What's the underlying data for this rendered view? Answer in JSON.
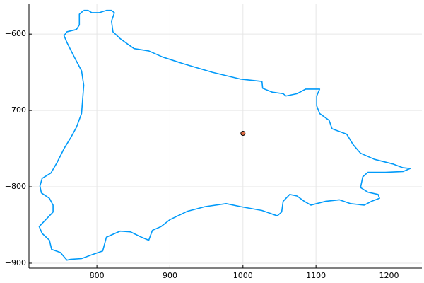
{
  "chart_data": {
    "type": "line",
    "xlim": [
      707,
      1245
    ],
    "ylim": [
      -906.5,
      -560
    ],
    "xticks": [
      800,
      900,
      1000,
      1100,
      1200
    ],
    "yticks": [
      {
        "value": -900,
        "label": "−900"
      },
      {
        "value": -800,
        "label": "−800"
      },
      {
        "value": -700,
        "label": "−700"
      },
      {
        "value": -600,
        "label": "−600"
      }
    ],
    "grid": true,
    "series": [
      {
        "type": "line",
        "color": "#009af9",
        "x": [
          782,
          788,
          793,
          803,
          813,
          820,
          824,
          820,
          822,
          832,
          842,
          851,
          871,
          890,
          919,
          958,
          997,
          1026,
          1027,
          1040,
          1055,
          1059,
          1074,
          1086,
          1105,
          1101,
          1101,
          1105,
          1118,
          1122,
          1142,
          1151,
          1161,
          1180,
          1205,
          1219,
          1229,
          1219,
          1195,
          1171,
          1164,
          1161,
          1171,
          1185,
          1187,
          1176,
          1166,
          1147,
          1132,
          1113,
          1093,
          1084,
          1074,
          1064,
          1055,
          1053,
          1047,
          1026,
          997,
          977,
          948,
          924,
          900,
          888,
          876,
          871,
          861,
          846,
          832,
          813,
          808,
          793,
          779,
          764,
          759,
          750,
          738,
          735,
          725,
          721,
          730,
          740,
          740,
          735,
          724,
          722,
          725,
          737,
          745,
          755,
          764,
          772,
          779,
          782,
          779,
          769,
          759,
          755,
          759,
          772,
          776,
          776,
          782
        ],
        "values": [
          -569,
          -569,
          -572,
          -572,
          -569,
          -569,
          -572,
          -583,
          -597,
          -606,
          -613,
          -619,
          -622,
          -630,
          -639,
          -650,
          -659,
          -662,
          -671,
          -676,
          -678,
          -681,
          -678,
          -672,
          -672,
          -681,
          -694,
          -704,
          -713,
          -724,
          -731,
          -745,
          -756,
          -764,
          -770,
          -775,
          -776,
          -780,
          -781,
          -781,
          -787,
          -801,
          -807,
          -810,
          -815,
          -819,
          -824,
          -822,
          -817,
          -819,
          -824,
          -819,
          -812,
          -810,
          -819,
          -833,
          -838,
          -831,
          -826,
          -822,
          -826,
          -832,
          -843,
          -852,
          -857,
          -870,
          -866,
          -859,
          -858,
          -866,
          -884,
          -889,
          -894,
          -895,
          -896,
          -886,
          -882,
          -870,
          -861,
          -852,
          -843,
          -833,
          -824,
          -815,
          -808,
          -799,
          -789,
          -782,
          -769,
          -750,
          -736,
          -722,
          -704,
          -667,
          -648,
          -630,
          -611,
          -602,
          -597,
          -594,
          -588,
          -574,
          -569
        ]
      },
      {
        "type": "scatter",
        "color": "#e26f46",
        "x": [
          1000
        ],
        "values": [
          -730
        ]
      }
    ]
  }
}
